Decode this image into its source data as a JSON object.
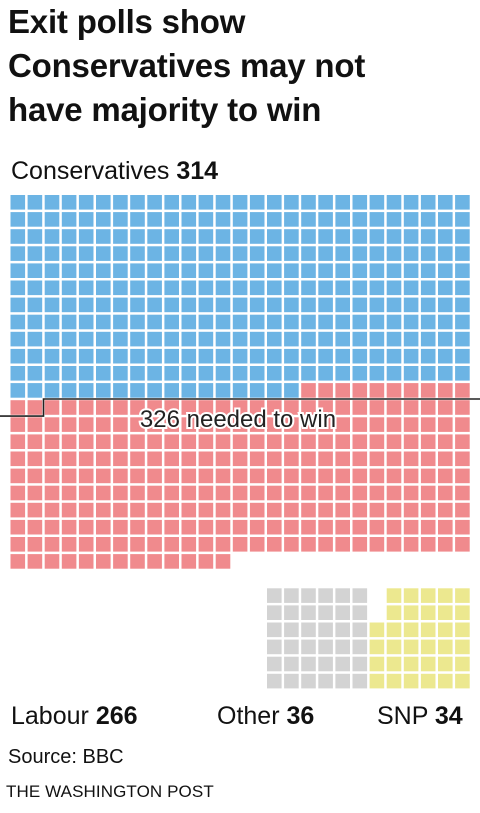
{
  "title_lines": [
    "Exit polls show",
    "Conservatives may not",
    "have majority to win"
  ],
  "labels": {
    "conservatives_name": "Conservatives",
    "conservatives_value": "314",
    "labour_name": "Labour",
    "labour_value": "266",
    "other_name": "Other",
    "other_value": "36",
    "snp_name": "SNP",
    "snp_value": "34"
  },
  "source": "Source: BBC",
  "brand": "THE WASHINGTON POST",
  "chart_data": {
    "type": "waffle",
    "unit": "seats",
    "total": 650,
    "series": [
      {
        "name": "Conservatives",
        "value": 314,
        "color": "#6cb4e4"
      },
      {
        "name": "Labour",
        "value": 266,
        "color": "#f08a8d"
      },
      {
        "name": "Other",
        "value": 36,
        "color": "#d3d3d3"
      },
      {
        "name": "SNP",
        "value": 34,
        "color": "#ece88f"
      }
    ],
    "threshold": {
      "value": 326,
      "label": "326 needed to win"
    }
  }
}
